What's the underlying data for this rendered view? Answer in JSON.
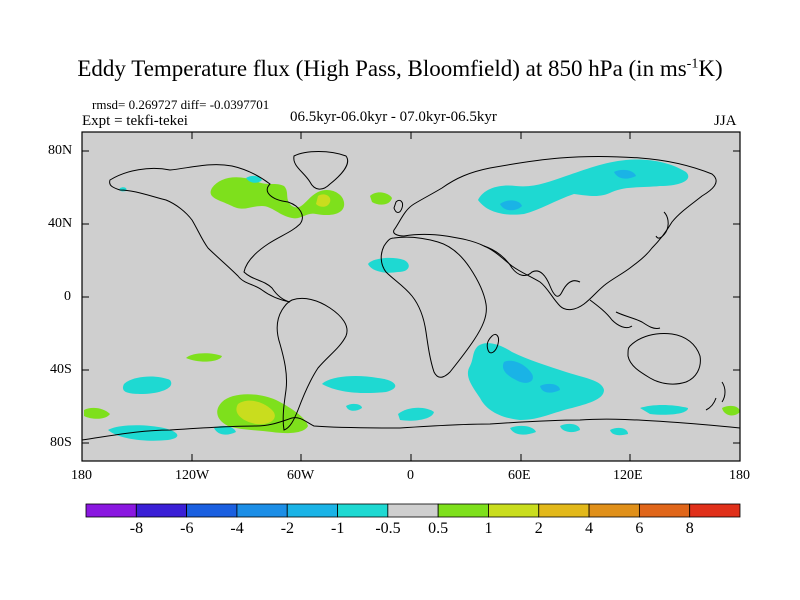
{
  "title": {
    "main": "Eddy Temperature flux (High Pass, Bloomfield) at 850 hPa (in ms",
    "sup": "-1",
    "tail": "K)"
  },
  "stats": "rmsd= 0.269727 diff= -0.0397701",
  "experiment": "Expt = tekfi-tekei",
  "period": "06.5kyr-06.0kyr - 07.0kyr-06.5kyr",
  "season": "JJA",
  "lat_ticks": [
    "80N",
    "40N",
    "0",
    "40S",
    "80S"
  ],
  "lon_ticks": [
    "180",
    "120W",
    "60W",
    "0",
    "60E",
    "120E",
    "180"
  ],
  "colorbar": {
    "labels": [
      "-8",
      "-6",
      "-4",
      "-2",
      "-1",
      "-0.5",
      "0.5",
      "1",
      "2",
      "4",
      "6",
      "8"
    ],
    "colors": [
      "#8a17e0",
      "#3a1fd6",
      "#1a5fe0",
      "#1c8ee6",
      "#1ab3e6",
      "#1ed9d2",
      "#cfcfcf",
      "#7ee01c",
      "#c9dd1e",
      "#e2b81a",
      "#e0901a",
      "#e0661a",
      "#e0301a"
    ]
  },
  "colors": {
    "neutral": "#cfcfcf",
    "cyan": "#1ed9d2",
    "green": "#7ee01c",
    "yellow": "#c9dd1e",
    "coast": "#000000"
  }
}
